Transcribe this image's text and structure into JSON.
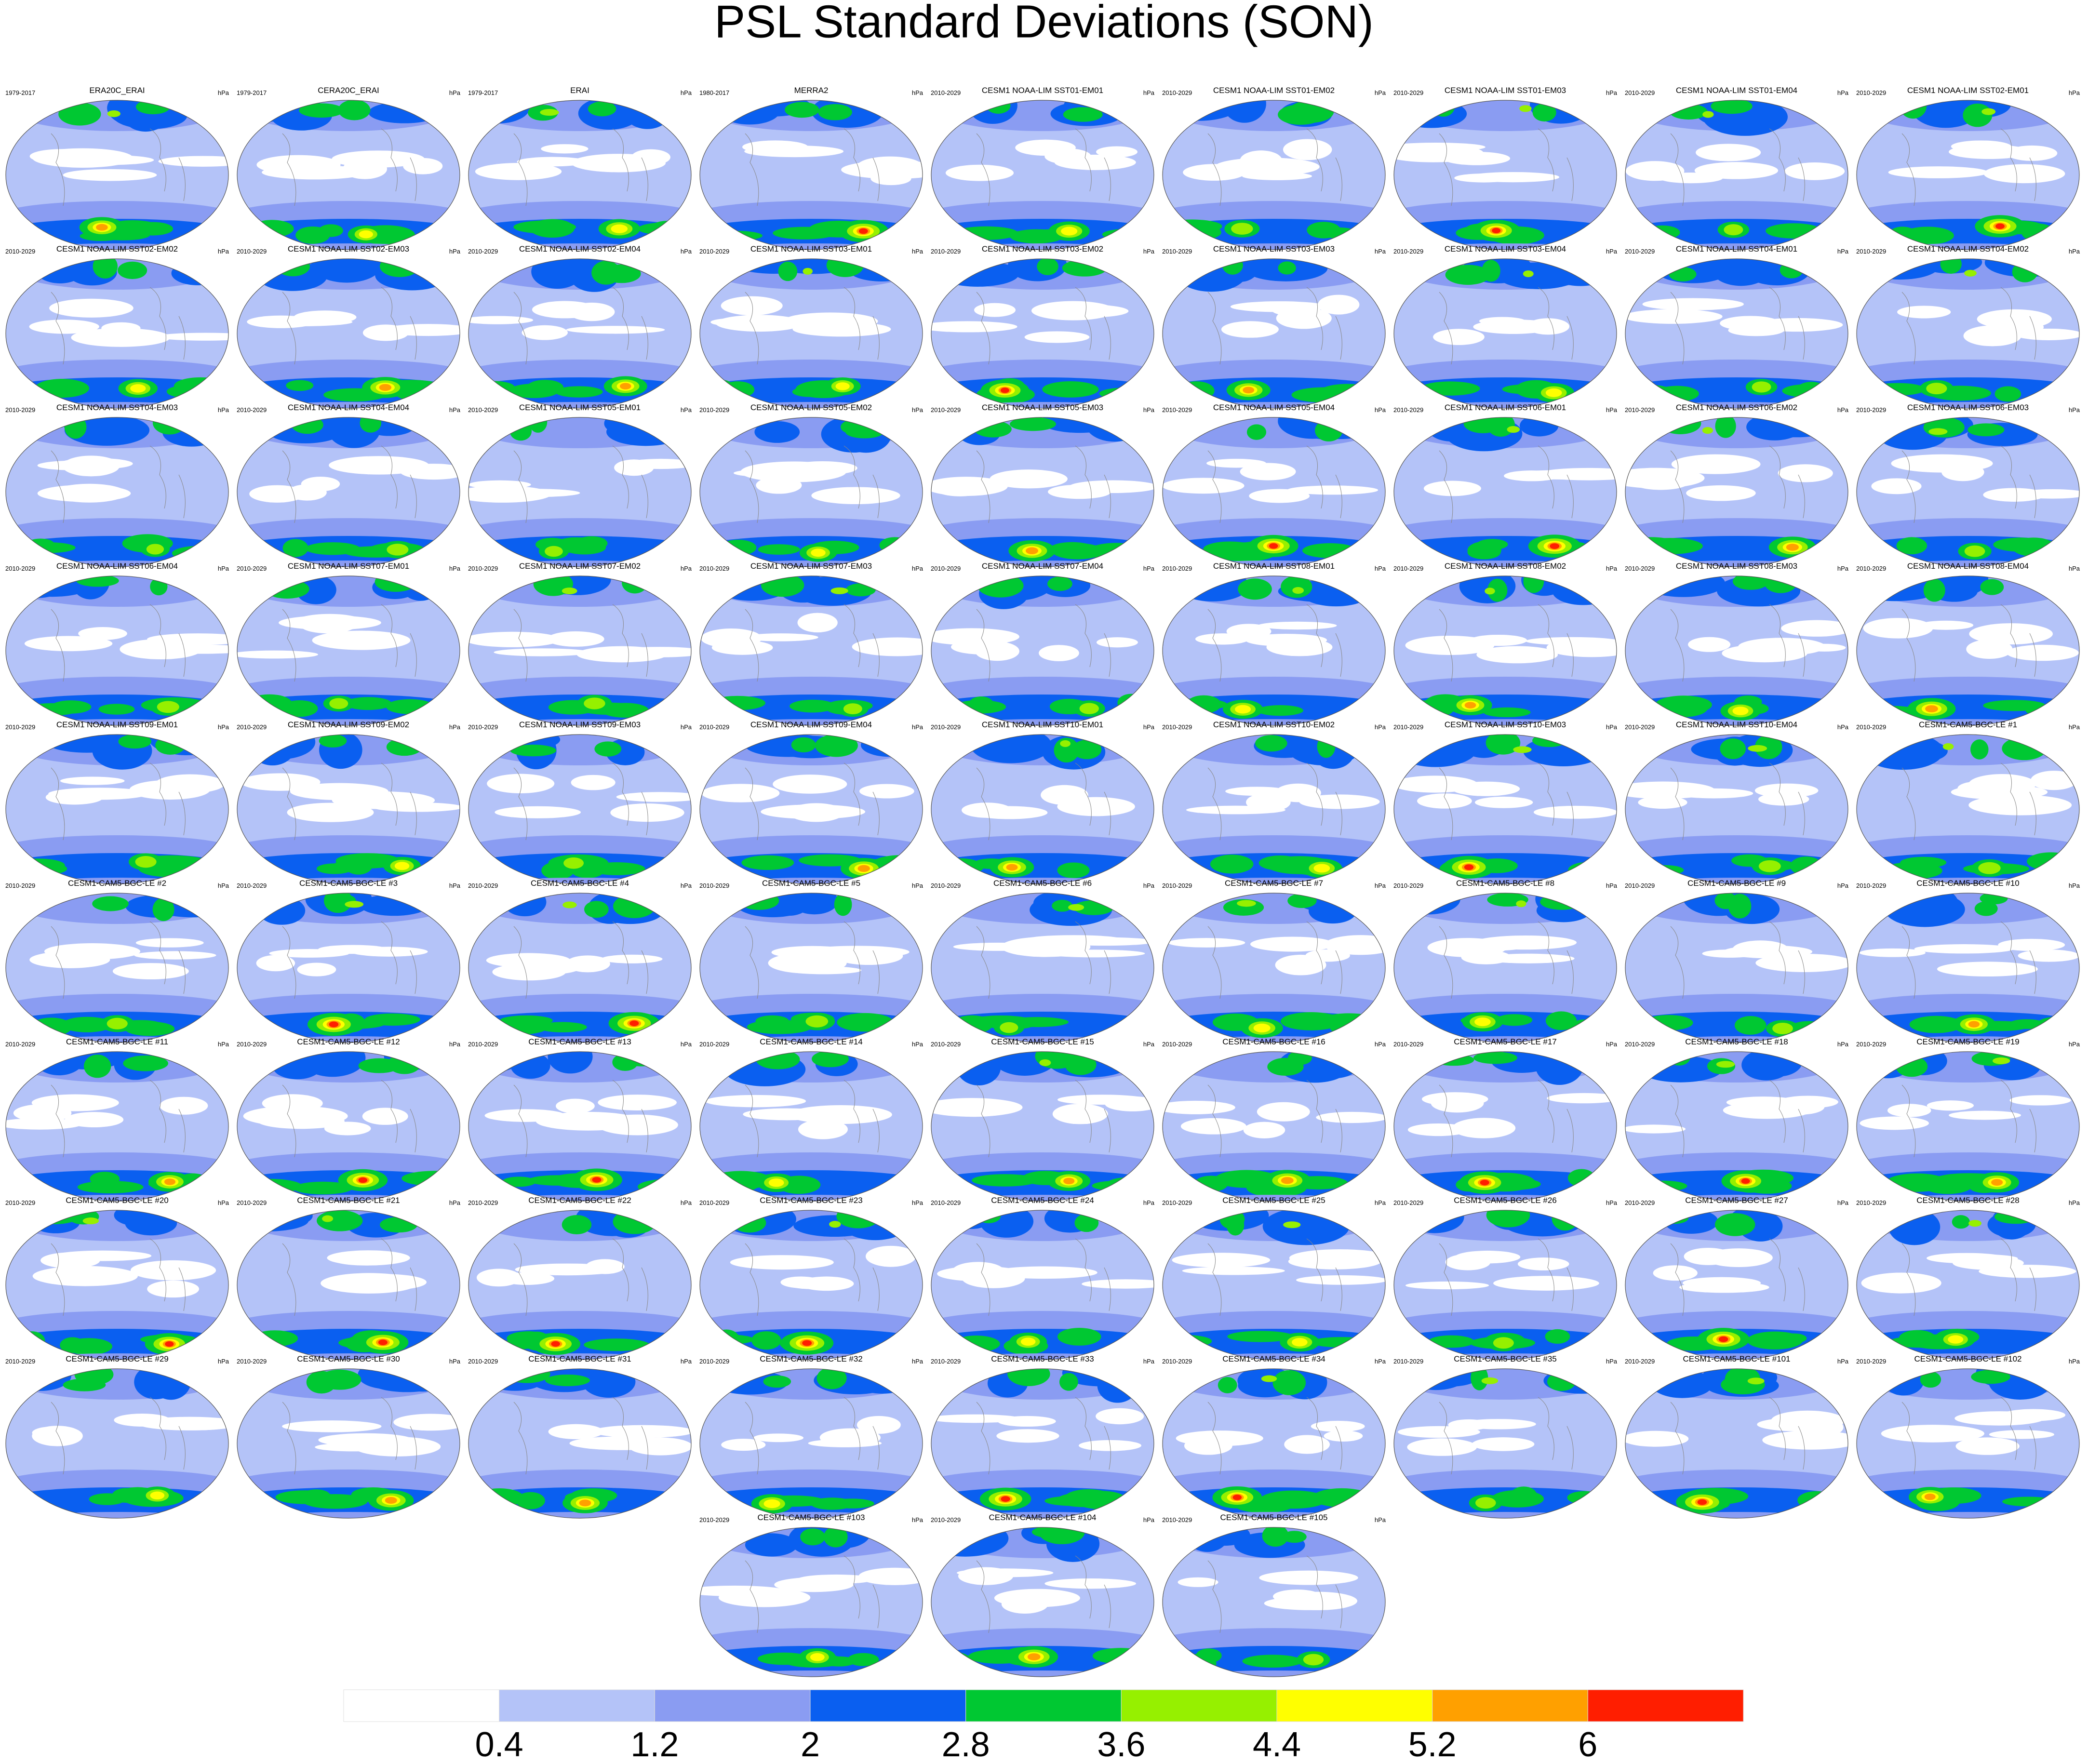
{
  "chart_data": {
    "type": "map-grid",
    "title": "PSL Standard Deviations (SON)",
    "panels": [
      {
        "title": "ERA20C_ERAI",
        "period": "1979-2017",
        "units": "hPa"
      },
      {
        "title": "CERA20C_ERAI",
        "period": "1979-2017",
        "units": "hPa"
      },
      {
        "title": "ERAI",
        "period": "1979-2017",
        "units": "hPa"
      },
      {
        "title": "MERRA2",
        "period": "1980-2017",
        "units": "hPa"
      },
      {
        "title": "CESM1 NOAA-LIM SST01-EM01",
        "period": "2010-2029",
        "units": "hPa"
      },
      {
        "title": "CESM1 NOAA-LIM SST01-EM02",
        "period": "2010-2029",
        "units": "hPa"
      },
      {
        "title": "CESM1 NOAA-LIM SST01-EM03",
        "period": "2010-2029",
        "units": "hPa"
      },
      {
        "title": "CESM1 NOAA-LIM SST01-EM04",
        "period": "2010-2029",
        "units": "hPa"
      },
      {
        "title": "CESM1 NOAA-LIM SST02-EM01",
        "period": "2010-2029",
        "units": "hPa"
      },
      {
        "title": "CESM1 NOAA-LIM SST02-EM02",
        "period": "2010-2029",
        "units": "hPa"
      },
      {
        "title": "CESM1 NOAA-LIM SST02-EM03",
        "period": "2010-2029",
        "units": "hPa"
      },
      {
        "title": "CESM1 NOAA-LIM SST02-EM04",
        "period": "2010-2029",
        "units": "hPa"
      },
      {
        "title": "CESM1 NOAA-LIM SST03-EM01",
        "period": "2010-2029",
        "units": "hPa"
      },
      {
        "title": "CESM1 NOAA-LIM SST03-EM02",
        "period": "2010-2029",
        "units": "hPa"
      },
      {
        "title": "CESM1 NOAA-LIM SST03-EM03",
        "period": "2010-2029",
        "units": "hPa"
      },
      {
        "title": "CESM1 NOAA-LIM SST03-EM04",
        "period": "2010-2029",
        "units": "hPa"
      },
      {
        "title": "CESM1 NOAA-LIM SST04-EM01",
        "period": "2010-2029",
        "units": "hPa"
      },
      {
        "title": "CESM1 NOAA-LIM SST04-EM02",
        "period": "2010-2029",
        "units": "hPa"
      },
      {
        "title": "CESM1 NOAA-LIM SST04-EM03",
        "period": "2010-2029",
        "units": "hPa"
      },
      {
        "title": "CESM1 NOAA-LIM SST04-EM04",
        "period": "2010-2029",
        "units": "hPa"
      },
      {
        "title": "CESM1 NOAA-LIM SST05-EM01",
        "period": "2010-2029",
        "units": "hPa"
      },
      {
        "title": "CESM1 NOAA-LIM SST05-EM02",
        "period": "2010-2029",
        "units": "hPa"
      },
      {
        "title": "CESM1 NOAA-LIM SST05-EM03",
        "period": "2010-2029",
        "units": "hPa"
      },
      {
        "title": "CESM1 NOAA-LIM SST05-EM04",
        "period": "2010-2029",
        "units": "hPa"
      },
      {
        "title": "CESM1 NOAA-LIM SST06-EM01",
        "period": "2010-2029",
        "units": "hPa"
      },
      {
        "title": "CESM1 NOAA-LIM SST06-EM02",
        "period": "2010-2029",
        "units": "hPa"
      },
      {
        "title": "CESM1 NOAA-LIM SST06-EM03",
        "period": "2010-2029",
        "units": "hPa"
      },
      {
        "title": "CESM1 NOAA-LIM SST06-EM04",
        "period": "2010-2029",
        "units": "hPa"
      },
      {
        "title": "CESM1 NOAA-LIM SST07-EM01",
        "period": "2010-2029",
        "units": "hPa"
      },
      {
        "title": "CESM1 NOAA-LIM SST07-EM02",
        "period": "2010-2029",
        "units": "hPa"
      },
      {
        "title": "CESM1 NOAA-LIM SST07-EM03",
        "period": "2010-2029",
        "units": "hPa"
      },
      {
        "title": "CESM1 NOAA-LIM SST07-EM04",
        "period": "2010-2029",
        "units": "hPa"
      },
      {
        "title": "CESM1 NOAA-LIM SST08-EM01",
        "period": "2010-2029",
        "units": "hPa"
      },
      {
        "title": "CESM1 NOAA-LIM SST08-EM02",
        "period": "2010-2029",
        "units": "hPa"
      },
      {
        "title": "CESM1 NOAA-LIM SST08-EM03",
        "period": "2010-2029",
        "units": "hPa"
      },
      {
        "title": "CESM1 NOAA-LIM SST08-EM04",
        "period": "2010-2029",
        "units": "hPa"
      },
      {
        "title": "CESM1 NOAA-LIM SST09-EM01",
        "period": "2010-2029",
        "units": "hPa"
      },
      {
        "title": "CESM1 NOAA-LIM SST09-EM02",
        "period": "2010-2029",
        "units": "hPa"
      },
      {
        "title": "CESM1 NOAA-LIM SST09-EM03",
        "period": "2010-2029",
        "units": "hPa"
      },
      {
        "title": "CESM1 NOAA-LIM SST09-EM04",
        "period": "2010-2029",
        "units": "hPa"
      },
      {
        "title": "CESM1 NOAA-LIM SST10-EM01",
        "period": "2010-2029",
        "units": "hPa"
      },
      {
        "title": "CESM1 NOAA-LIM SST10-EM02",
        "period": "2010-2029",
        "units": "hPa"
      },
      {
        "title": "CESM1 NOAA-LIM SST10-EM03",
        "period": "2010-2029",
        "units": "hPa"
      },
      {
        "title": "CESM1 NOAA-LIM SST10-EM04",
        "period": "2010-2029",
        "units": "hPa"
      },
      {
        "title": "CESM1-CAM5-BGC-LE #1",
        "period": "2010-2029",
        "units": "hPa"
      },
      {
        "title": "CESM1-CAM5-BGC-LE #2",
        "period": "2010-2029",
        "units": "hPa"
      },
      {
        "title": "CESM1-CAM5-BGC-LE #3",
        "period": "2010-2029",
        "units": "hPa"
      },
      {
        "title": "CESM1-CAM5-BGC-LE #4",
        "period": "2010-2029",
        "units": "hPa"
      },
      {
        "title": "CESM1-CAM5-BGC-LE #5",
        "period": "2010-2029",
        "units": "hPa"
      },
      {
        "title": "CESM1-CAM5-BGC-LE #6",
        "period": "2010-2029",
        "units": "hPa"
      },
      {
        "title": "CESM1-CAM5-BGC-LE #7",
        "period": "2010-2029",
        "units": "hPa"
      },
      {
        "title": "CESM1-CAM5-BGC-LE #8",
        "period": "2010-2029",
        "units": "hPa"
      },
      {
        "title": "CESM1-CAM5-BGC-LE #9",
        "period": "2010-2029",
        "units": "hPa"
      },
      {
        "title": "CESM1-CAM5-BGC-LE #10",
        "period": "2010-2029",
        "units": "hPa"
      },
      {
        "title": "CESM1-CAM5-BGC-LE #11",
        "period": "2010-2029",
        "units": "hPa"
      },
      {
        "title": "CESM1-CAM5-BGC-LE #12",
        "period": "2010-2029",
        "units": "hPa"
      },
      {
        "title": "CESM1-CAM5-BGC-LE #13",
        "period": "2010-2029",
        "units": "hPa"
      },
      {
        "title": "CESM1-CAM5-BGC-LE #14",
        "period": "2010-2029",
        "units": "hPa"
      },
      {
        "title": "CESM1-CAM5-BGC-LE #15",
        "period": "2010-2029",
        "units": "hPa"
      },
      {
        "title": "CESM1-CAM5-BGC-LE #16",
        "period": "2010-2029",
        "units": "hPa"
      },
      {
        "title": "CESM1-CAM5-BGC-LE #17",
        "period": "2010-2029",
        "units": "hPa"
      },
      {
        "title": "CESM1-CAM5-BGC-LE #18",
        "period": "2010-2029",
        "units": "hPa"
      },
      {
        "title": "CESM1-CAM5-BGC-LE #19",
        "period": "2010-2029",
        "units": "hPa"
      },
      {
        "title": "CESM1-CAM5-BGC-LE #20",
        "period": "2010-2029",
        "units": "hPa"
      },
      {
        "title": "CESM1-CAM5-BGC-LE #21",
        "period": "2010-2029",
        "units": "hPa"
      },
      {
        "title": "CESM1-CAM5-BGC-LE #22",
        "period": "2010-2029",
        "units": "hPa"
      },
      {
        "title": "CESM1-CAM5-BGC-LE #23",
        "period": "2010-2029",
        "units": "hPa"
      },
      {
        "title": "CESM1-CAM5-BGC-LE #24",
        "period": "2010-2029",
        "units": "hPa"
      },
      {
        "title": "CESM1-CAM5-BGC-LE #25",
        "period": "2010-2029",
        "units": "hPa"
      },
      {
        "title": "CESM1-CAM5-BGC-LE #26",
        "period": "2010-2029",
        "units": "hPa"
      },
      {
        "title": "CESM1-CAM5-BGC-LE #27",
        "period": "2010-2029",
        "units": "hPa"
      },
      {
        "title": "CESM1-CAM5-BGC-LE #28",
        "period": "2010-2029",
        "units": "hPa"
      },
      {
        "title": "CESM1-CAM5-BGC-LE #29",
        "period": "2010-2029",
        "units": "hPa"
      },
      {
        "title": "CESM1-CAM5-BGC-LE #30",
        "period": "2010-2029",
        "units": "hPa"
      },
      {
        "title": "CESM1-CAM5-BGC-LE #31",
        "period": "2010-2029",
        "units": "hPa"
      },
      {
        "title": "CESM1-CAM5-BGC-LE #32",
        "period": "2010-2029",
        "units": "hPa"
      },
      {
        "title": "CESM1-CAM5-BGC-LE #33",
        "period": "2010-2029",
        "units": "hPa"
      },
      {
        "title": "CESM1-CAM5-BGC-LE #34",
        "period": "2010-2029",
        "units": "hPa"
      },
      {
        "title": "CESM1-CAM5-BGC-LE #35",
        "period": "2010-2029",
        "units": "hPa"
      },
      {
        "title": "CESM1-CAM5-BGC-LE #101",
        "period": "2010-2029",
        "units": "hPa"
      },
      {
        "title": "CESM1-CAM5-BGC-LE #102",
        "period": "2010-2029",
        "units": "hPa"
      },
      {
        "title": "CESM1-CAM5-BGC-LE #103",
        "period": "2010-2029",
        "units": "hPa"
      },
      {
        "title": "CESM1-CAM5-BGC-LE #104",
        "period": "2010-2029",
        "units": "hPa"
      },
      {
        "title": "CESM1-CAM5-BGC-LE #105",
        "period": "2010-2029",
        "units": "hPa"
      }
    ],
    "colorbar": {
      "levels": [
        0.4,
        1.2,
        2,
        2.8,
        3.6,
        4.4,
        5.2,
        6
      ],
      "colors": [
        "#ffffff",
        "#b4c3f8",
        "#8a9cf2",
        "#0a5ff0",
        "#00c832",
        "#96f000",
        "#ffff00",
        "#ffa000",
        "#ff1e00"
      ]
    }
  }
}
